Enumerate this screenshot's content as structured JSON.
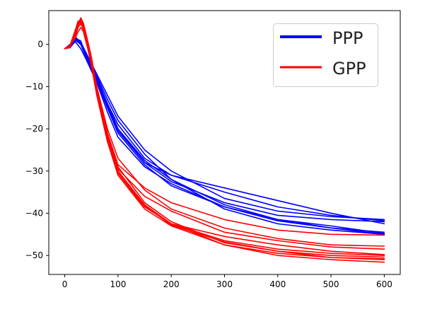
{
  "chart_data": {
    "type": "line",
    "title": "",
    "xlabel": "",
    "ylabel": "",
    "xlim": [
      -30,
      630
    ],
    "ylim": [
      -54.5,
      8
    ],
    "xticks": [
      0,
      100,
      200,
      300,
      400,
      500,
      600
    ],
    "yticks": [
      0,
      -10,
      -20,
      -30,
      -40,
      -50
    ],
    "grid": false,
    "legend": {
      "position": "top-right",
      "entries": [
        "PPP",
        "GPP"
      ]
    },
    "colors": {
      "PPP": "#0000ff",
      "GPP": "#ff0000"
    },
    "series": [
      {
        "name": "PPP",
        "color": "#0000ff",
        "x": [
          0,
          10,
          20,
          30,
          40,
          60,
          80,
          100,
          150,
          200,
          300,
          400,
          500,
          600
        ],
        "y": [
          -1,
          -0.8,
          0.9,
          0.5,
          -2,
          -7,
          -12,
          -17,
          -25,
          -30,
          -36.5,
          -39.5,
          -40.8,
          -41.5
        ]
      },
      {
        "name": "PPP",
        "color": "#0000ff",
        "x": [
          0,
          10,
          20,
          30,
          40,
          60,
          80,
          100,
          150,
          200,
          300,
          400,
          500,
          600
        ],
        "y": [
          -1,
          -0.6,
          1.2,
          0,
          -3,
          -8,
          -14,
          -19,
          -27,
          -31,
          -35,
          -38.5,
          -40.5,
          -41.8
        ]
      },
      {
        "name": "PPP",
        "color": "#0000ff",
        "x": [
          0,
          10,
          20,
          30,
          40,
          60,
          80,
          100,
          150,
          200,
          300,
          400,
          500,
          600
        ],
        "y": [
          -1,
          -0.2,
          1.5,
          0.8,
          -2.5,
          -8.5,
          -15,
          -20,
          -27.5,
          -32,
          -38,
          -41.5,
          -43,
          -44.8
        ]
      },
      {
        "name": "PPP",
        "color": "#0000ff",
        "x": [
          0,
          10,
          20,
          30,
          40,
          60,
          80,
          100,
          150,
          200,
          300,
          400,
          500,
          600
        ],
        "y": [
          -1,
          0,
          1.8,
          0.3,
          -2,
          -7.5,
          -13,
          -18,
          -26,
          -32,
          -39,
          -42.5,
          -44,
          -45
        ]
      },
      {
        "name": "PPP",
        "color": "#0000ff",
        "x": [
          0,
          10,
          20,
          30,
          40,
          60,
          80,
          100,
          150,
          200,
          300,
          400,
          500,
          600
        ],
        "y": [
          -1,
          -0.4,
          0.6,
          -1,
          -3.5,
          -9,
          -16,
          -22,
          -29,
          -33,
          -38.5,
          -41.8,
          -43.5,
          -44.5
        ]
      },
      {
        "name": "PPP",
        "color": "#0000ff",
        "x": [
          0,
          10,
          20,
          30,
          40,
          60,
          80,
          100,
          150,
          200,
          300,
          400,
          500,
          600
        ],
        "y": [
          -1,
          -0.3,
          1,
          0,
          -3,
          -8,
          -14,
          -20,
          -28,
          -31,
          -34,
          -37,
          -40,
          -42.5
        ]
      },
      {
        "name": "PPP",
        "color": "#0000ff",
        "x": [
          0,
          10,
          20,
          30,
          40,
          60,
          80,
          100,
          150,
          200,
          300,
          400,
          500,
          600
        ],
        "y": [
          -1,
          -0.5,
          1.3,
          0.2,
          -3,
          -8.5,
          -15,
          -21,
          -28.5,
          -33.5,
          -38.5,
          -41.5,
          -43.5,
          -45
        ]
      },
      {
        "name": "PPP",
        "color": "#0000ff",
        "x": [
          0,
          10,
          20,
          30,
          40,
          60,
          80,
          100,
          150,
          200,
          300,
          400,
          500,
          600
        ],
        "y": [
          -1,
          -0.1,
          1.6,
          0.4,
          -2.5,
          -8,
          -14.5,
          -20.5,
          -28,
          -32.5,
          -37.5,
          -40.5,
          -41.5,
          -42
        ]
      },
      {
        "name": "GPP",
        "color": "#ff0000",
        "x": [
          0,
          10,
          20,
          25,
          30,
          35,
          40,
          50,
          60,
          80,
          100,
          150,
          200,
          300,
          400,
          500,
          600
        ],
        "y": [
          -1,
          -0.5,
          3,
          5,
          5.5,
          4.5,
          2,
          -4,
          -11,
          -22,
          -30,
          -38.5,
          -42.5,
          -46.5,
          -48.5,
          -49.5,
          -50
        ]
      },
      {
        "name": "GPP",
        "color": "#ff0000",
        "x": [
          0,
          10,
          20,
          25,
          30,
          35,
          40,
          50,
          60,
          80,
          100,
          150,
          200,
          300,
          400,
          500,
          600
        ],
        "y": [
          -1,
          -0.8,
          2.5,
          4.5,
          6.3,
          5,
          2.5,
          -3,
          -10,
          -21,
          -29,
          -37.5,
          -42,
          -47,
          -49,
          -50.5,
          -51
        ]
      },
      {
        "name": "GPP",
        "color": "#ff0000",
        "x": [
          0,
          10,
          20,
          25,
          30,
          35,
          40,
          50,
          60,
          80,
          100,
          150,
          200,
          300,
          400,
          500,
          600
        ],
        "y": [
          -1,
          -0.2,
          3.5,
          5.5,
          5.8,
          4,
          1,
          -5,
          -12,
          -23,
          -31,
          -39,
          -43,
          -47.5,
          -49.5,
          -50.5,
          -50.8
        ]
      },
      {
        "name": "GPP",
        "color": "#ff0000",
        "x": [
          0,
          10,
          20,
          25,
          30,
          35,
          40,
          50,
          60,
          80,
          100,
          150,
          200,
          300,
          400,
          500,
          600
        ],
        "y": [
          -1,
          -0.6,
          2,
          4,
          5,
          3.5,
          1.5,
          -4.5,
          -11.5,
          -22,
          -30,
          -38,
          -42.5,
          -47.5,
          -50,
          -51,
          -51.6
        ]
      },
      {
        "name": "GPP",
        "color": "#ff0000",
        "x": [
          0,
          10,
          20,
          25,
          30,
          35,
          40,
          50,
          60,
          80,
          100,
          150,
          200,
          300,
          400,
          500,
          600
        ],
        "y": [
          -1,
          -0.3,
          1.5,
          3,
          4,
          3,
          0.5,
          -4,
          -10,
          -20,
          -27,
          -34.5,
          -39,
          -43.5,
          -46,
          -47.5,
          -47.8
        ]
      },
      {
        "name": "GPP",
        "color": "#ff0000",
        "x": [
          0,
          10,
          20,
          25,
          30,
          35,
          40,
          50,
          60,
          80,
          100,
          150,
          200,
          300,
          400,
          500,
          600
        ],
        "y": [
          -1,
          -0.7,
          2.8,
          4.8,
          5.2,
          4,
          1.8,
          -3.5,
          -10.5,
          -21.5,
          -29.5,
          -36,
          -39.5,
          -44.5,
          -46.5,
          -48,
          -48.5
        ]
      },
      {
        "name": "GPP",
        "color": "#ff0000",
        "x": [
          0,
          10,
          20,
          25,
          30,
          35,
          40,
          50,
          60,
          80,
          100,
          150,
          200,
          300,
          400,
          500,
          600
        ],
        "y": [
          -1,
          -0.4,
          3.2,
          5.2,
          6,
          4.6,
          2.2,
          -3.8,
          -11,
          -22.5,
          -31,
          -38.5,
          -42.5,
          -45.5,
          -47.5,
          -49,
          -49.8
        ]
      },
      {
        "name": "GPP",
        "color": "#ff0000",
        "x": [
          0,
          10,
          20,
          25,
          30,
          35,
          40,
          50,
          60,
          80,
          100,
          150,
          200,
          300,
          400,
          500,
          600
        ],
        "y": [
          -1,
          -0.6,
          2.2,
          4.2,
          4.8,
          3.8,
          1.2,
          -4.2,
          -11.2,
          -21,
          -28.5,
          -34,
          -37.5,
          -41.5,
          -44,
          -45,
          -45.2
        ]
      },
      {
        "name": "GPP",
        "color": "#ff0000",
        "x": [
          0,
          10,
          20,
          25,
          30,
          35,
          40,
          50,
          60,
          80,
          100,
          150,
          200,
          300,
          400,
          500,
          600
        ],
        "y": [
          -1,
          -0.5,
          2.6,
          4.6,
          5.4,
          4.2,
          1.6,
          -4.5,
          -11.8,
          -22.8,
          -30.5,
          -38.2,
          -42.8,
          -46.8,
          -49,
          -50,
          -50.4
        ]
      }
    ]
  }
}
